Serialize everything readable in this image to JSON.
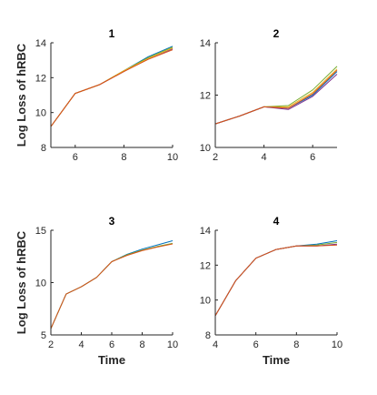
{
  "chart_data": [
    {
      "type": "line",
      "title": "1",
      "xlabel": "",
      "ylabel": "Log Loss of hRBC",
      "xlim": [
        5,
        10
      ],
      "ylim": [
        8,
        14
      ],
      "xticks": [
        6,
        8,
        10
      ],
      "yticks": [
        8,
        10,
        12,
        14
      ],
      "series": [
        {
          "color": "#0072BD",
          "x": [
            5,
            6,
            7,
            8,
            9,
            10
          ],
          "y": [
            9.2,
            11.1,
            11.6,
            12.4,
            13.2,
            13.8
          ]
        },
        {
          "color": "#77AC30",
          "x": [
            5,
            6,
            7,
            8,
            9,
            10
          ],
          "y": [
            9.2,
            11.1,
            11.6,
            12.4,
            13.15,
            13.75
          ]
        },
        {
          "color": "#7E2F8E",
          "x": [
            5,
            6,
            7,
            8,
            9,
            10
          ],
          "y": [
            9.2,
            11.1,
            11.6,
            12.35,
            13.1,
            13.65
          ]
        },
        {
          "color": "#EDB120",
          "x": [
            5,
            6,
            7,
            8,
            9,
            10
          ],
          "y": [
            9.2,
            11.1,
            11.6,
            12.4,
            13.1,
            13.7
          ]
        },
        {
          "color": "#D95319",
          "x": [
            5,
            6,
            7,
            8,
            9,
            10
          ],
          "y": [
            9.2,
            11.1,
            11.6,
            12.35,
            13.05,
            13.6
          ]
        }
      ]
    },
    {
      "type": "line",
      "title": "2",
      "xlabel": "",
      "ylabel": "",
      "xlim": [
        2,
        7
      ],
      "ylim": [
        10,
        14
      ],
      "xticks": [
        2,
        4,
        6
      ],
      "yticks": [
        10,
        12,
        14
      ],
      "series": [
        {
          "color": "#77AC30",
          "x": [
            2,
            3,
            4,
            5,
            6,
            7
          ],
          "y": [
            10.9,
            11.2,
            11.55,
            11.6,
            12.2,
            13.1
          ]
        },
        {
          "color": "#EDB120",
          "x": [
            2,
            3,
            4,
            5,
            6,
            7
          ],
          "y": [
            10.9,
            11.2,
            11.55,
            11.55,
            12.1,
            13.0
          ]
        },
        {
          "color": "#0072BD",
          "x": [
            2,
            3,
            4,
            5,
            6,
            7
          ],
          "y": [
            10.9,
            11.2,
            11.55,
            11.5,
            12.0,
            12.9
          ]
        },
        {
          "color": "#7E2F8E",
          "x": [
            2,
            3,
            4,
            5,
            6,
            7
          ],
          "y": [
            10.9,
            11.2,
            11.55,
            11.45,
            11.95,
            12.8
          ]
        },
        {
          "color": "#D95319",
          "x": [
            2,
            3,
            4,
            5,
            6,
            7
          ],
          "y": [
            10.9,
            11.2,
            11.55,
            11.5,
            12.05,
            12.95
          ]
        }
      ]
    },
    {
      "type": "line",
      "title": "3",
      "xlabel": "Time",
      "ylabel": "Log Loss of hRBC",
      "xlim": [
        2,
        10
      ],
      "ylim": [
        5,
        15
      ],
      "xticks": [
        2,
        4,
        6,
        8,
        10
      ],
      "yticks": [
        5,
        10,
        15
      ],
      "series": [
        {
          "color": "#0072BD",
          "x": [
            2,
            3,
            4,
            5,
            6,
            7,
            8,
            9,
            10
          ],
          "y": [
            5.6,
            8.9,
            9.6,
            10.5,
            12.0,
            12.7,
            13.2,
            13.6,
            14.0
          ]
        },
        {
          "color": "#77AC30",
          "x": [
            2,
            3,
            4,
            5,
            6,
            7,
            8,
            9,
            10
          ],
          "y": [
            5.6,
            8.9,
            9.6,
            10.5,
            12.0,
            12.65,
            13.1,
            13.45,
            13.75
          ]
        },
        {
          "color": "#D95319",
          "x": [
            2,
            3,
            4,
            5,
            6,
            7,
            8,
            9,
            10
          ],
          "y": [
            5.6,
            8.9,
            9.6,
            10.5,
            12.0,
            12.6,
            13.05,
            13.4,
            13.7
          ]
        }
      ]
    },
    {
      "type": "line",
      "title": "4",
      "xlabel": "Time",
      "ylabel": "",
      "xlim": [
        4,
        10
      ],
      "ylim": [
        8,
        14
      ],
      "xticks": [
        4,
        6,
        8,
        10
      ],
      "yticks": [
        8,
        10,
        12,
        14
      ],
      "series": [
        {
          "color": "#0072BD",
          "x": [
            4,
            5,
            6,
            7,
            8,
            9,
            10
          ],
          "y": [
            9.1,
            11.1,
            12.4,
            12.9,
            13.1,
            13.2,
            13.4
          ]
        },
        {
          "color": "#77AC30",
          "x": [
            4,
            5,
            6,
            7,
            8,
            9,
            10
          ],
          "y": [
            9.1,
            11.1,
            12.4,
            12.9,
            13.1,
            13.15,
            13.3
          ]
        },
        {
          "color": "#7E2F8E",
          "x": [
            4,
            5,
            6,
            7,
            8,
            9,
            10
          ],
          "y": [
            9.1,
            11.1,
            12.4,
            12.9,
            13.1,
            13.1,
            13.2
          ]
        },
        {
          "color": "#D95319",
          "x": [
            4,
            5,
            6,
            7,
            8,
            9,
            10
          ],
          "y": [
            9.1,
            11.1,
            12.4,
            12.9,
            13.1,
            13.1,
            13.15
          ]
        }
      ]
    }
  ]
}
